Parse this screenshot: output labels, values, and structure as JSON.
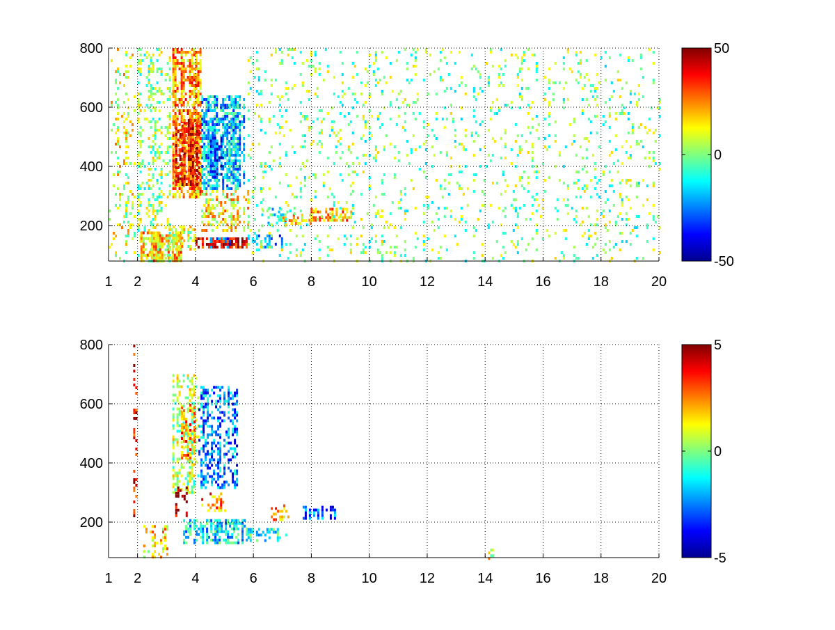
{
  "chart_data": [
    {
      "type": "heatmap",
      "xlim": [
        1,
        20
      ],
      "ylim": [
        80,
        800
      ],
      "x_ticks": [
        1,
        2,
        4,
        6,
        8,
        10,
        12,
        14,
        16,
        18,
        20
      ],
      "y_ticks": [
        200,
        400,
        600,
        800
      ],
      "grid": true,
      "colormap": "jet",
      "colorbar": {
        "min": -50,
        "max": 50,
        "ticks": [
          50,
          0,
          -50
        ],
        "placement": "right"
      },
      "regions": [
        {
          "x": [
            1.0,
            1.9
          ],
          "y": [
            80,
            800
          ],
          "value": 10,
          "density": 0.25
        },
        {
          "x": [
            2.0,
            3.2
          ],
          "y": [
            80,
            800
          ],
          "value": 2,
          "density": 0.35
        },
        {
          "x": [
            3.2,
            4.2
          ],
          "y": [
            300,
            800
          ],
          "value": 22,
          "density": 0.8
        },
        {
          "x": [
            3.3,
            4.1
          ],
          "y": [
            340,
            560
          ],
          "value": 35,
          "density": 0.9
        },
        {
          "x": [
            4.2,
            5.7
          ],
          "y": [
            320,
            640
          ],
          "value": -18,
          "density": 0.7
        },
        {
          "x": [
            4.5,
            4.9
          ],
          "y": [
            360,
            500
          ],
          "value": -32,
          "density": 0.8
        },
        {
          "x": [
            4.2,
            5.8
          ],
          "y": [
            180,
            320
          ],
          "value": 14,
          "density": 0.5
        },
        {
          "x": [
            2.1,
            3.5
          ],
          "y": [
            80,
            180
          ],
          "value": 18,
          "density": 0.85
        },
        {
          "x": [
            3.0,
            4.0
          ],
          "y": [
            120,
            200
          ],
          "value": 10,
          "density": 0.6
        },
        {
          "x": [
            4.0,
            5.8
          ],
          "y": [
            130,
            160
          ],
          "value": 42,
          "density": 0.95
        },
        {
          "x": [
            4.5,
            5.2
          ],
          "y": [
            130,
            160
          ],
          "value": -30,
          "density": 0.5
        },
        {
          "x": [
            5.8,
            7.0
          ],
          "y": [
            130,
            170
          ],
          "value": -25,
          "density": 0.6
        },
        {
          "x": [
            6.2,
            7.2
          ],
          "y": [
            200,
            260
          ],
          "value": -10,
          "density": 0.35
        },
        {
          "x": [
            7.0,
            8.0
          ],
          "y": [
            210,
            240
          ],
          "value": 18,
          "density": 0.6
        },
        {
          "x": [
            7.9,
            9.4
          ],
          "y": [
            220,
            260
          ],
          "value": 20,
          "density": 0.7
        },
        {
          "x": [
            5.8,
            20.0
          ],
          "y": [
            80,
            800
          ],
          "value": 0,
          "density": 0.12
        }
      ]
    },
    {
      "type": "heatmap",
      "xlim": [
        1,
        20
      ],
      "ylim": [
        80,
        800
      ],
      "x_ticks": [
        1,
        2,
        4,
        6,
        8,
        10,
        12,
        14,
        16,
        18,
        20
      ],
      "y_ticks": [
        200,
        400,
        600,
        800
      ],
      "grid": true,
      "colormap": "jet",
      "colorbar": {
        "min": -5,
        "max": 5,
        "ticks": [
          5,
          0,
          -5
        ],
        "placement": "right"
      },
      "regions": [
        {
          "x": [
            1.85,
            1.98
          ],
          "y": [
            220,
            800
          ],
          "value": 4,
          "density": 0.35
        },
        {
          "x": [
            2.2,
            3.0
          ],
          "y": [
            80,
            190
          ],
          "value": 1.5,
          "density": 0.55
        },
        {
          "x": [
            3.2,
            4.1
          ],
          "y": [
            300,
            700
          ],
          "value": 0.5,
          "density": 0.55
        },
        {
          "x": [
            3.5,
            4.0
          ],
          "y": [
            420,
            600
          ],
          "value": 2.5,
          "density": 0.45
        },
        {
          "x": [
            4.1,
            5.4
          ],
          "y": [
            320,
            660
          ],
          "value": -2.5,
          "density": 0.5
        },
        {
          "x": [
            3.3,
            3.7
          ],
          "y": [
            220,
            330
          ],
          "value": 4.5,
          "density": 0.35
        },
        {
          "x": [
            4.2,
            5.0
          ],
          "y": [
            240,
            300
          ],
          "value": 2.5,
          "density": 0.4
        },
        {
          "x": [
            3.5,
            5.8
          ],
          "y": [
            130,
            210
          ],
          "value": -1.5,
          "density": 0.65
        },
        {
          "x": [
            5.8,
            7.1
          ],
          "y": [
            140,
            180
          ],
          "value": -1.0,
          "density": 0.5
        },
        {
          "x": [
            6.6,
            7.2
          ],
          "y": [
            200,
            260
          ],
          "value": 2.0,
          "density": 0.4
        },
        {
          "x": [
            7.7,
            8.8
          ],
          "y": [
            215,
            255
          ],
          "value": -3.0,
          "density": 0.8
        },
        {
          "x": [
            14.1,
            14.3
          ],
          "y": [
            80,
            110
          ],
          "value": 1.0,
          "density": 0.6
        }
      ]
    }
  ]
}
